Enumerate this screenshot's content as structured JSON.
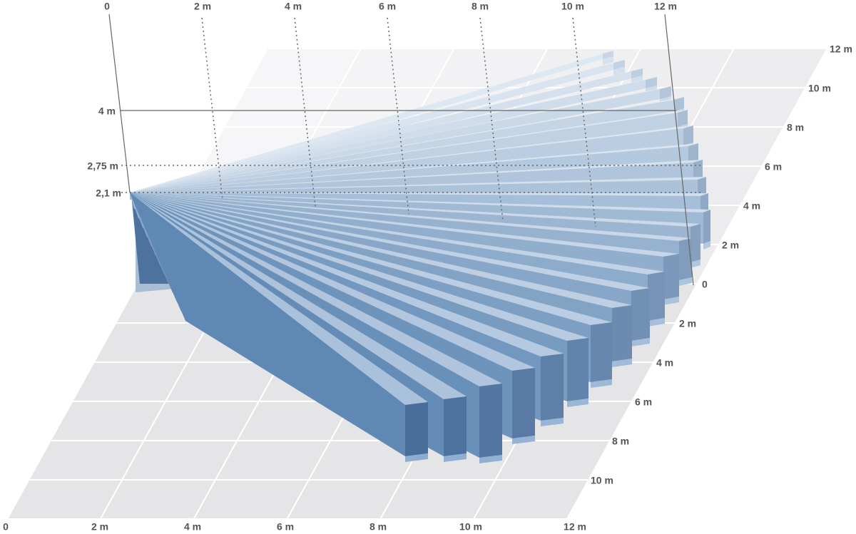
{
  "top_axis": [
    "0",
    "2 m",
    "4 m",
    "6 m",
    "8 m",
    "10 m",
    "12 m"
  ],
  "height_axis": [
    "4 m",
    "2,75 m",
    "2,1 m"
  ],
  "back_depth_axis": [
    "12 m",
    "10 m",
    "8 m",
    "6 m",
    "4 m",
    "2 m",
    "0"
  ],
  "front_depth_axis": [
    "2 m",
    "4 m",
    "6 m",
    "8 m",
    "10 m"
  ],
  "bottom_axis": [
    "0",
    "2 m",
    "4 m",
    "6 m",
    "8 m",
    "10 m",
    "12 m"
  ]
}
